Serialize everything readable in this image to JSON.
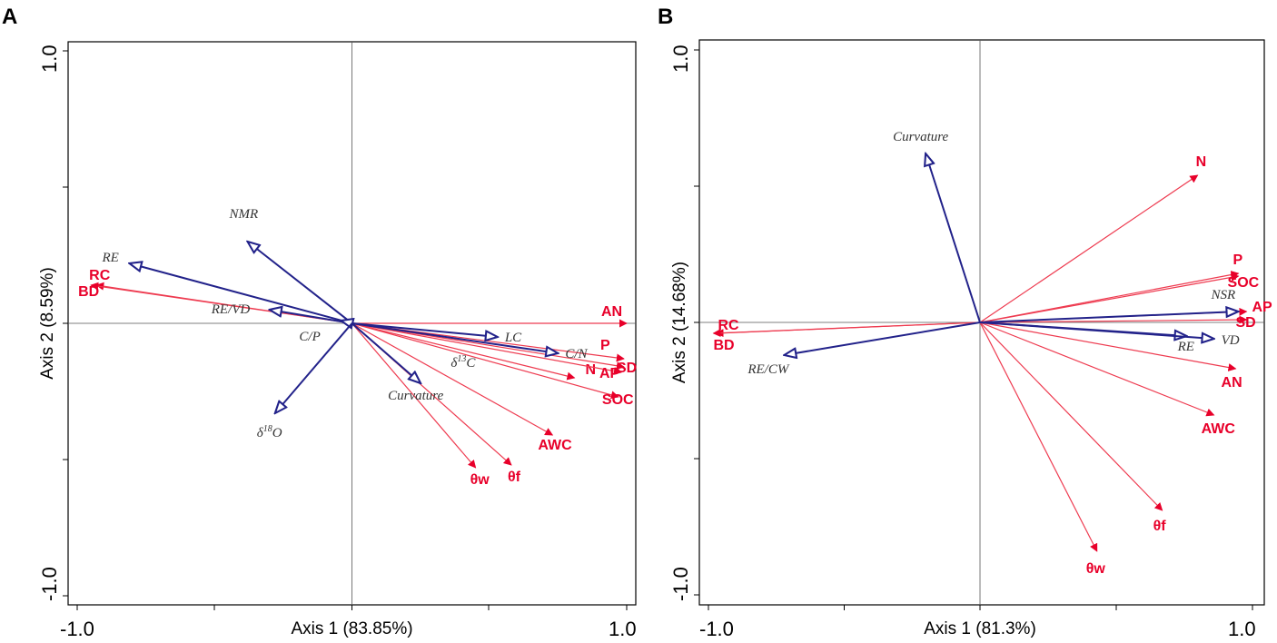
{
  "colors": {
    "soil": "#ee3b50",
    "soil_label": "#e8002a",
    "plant": "#22228a",
    "plant_label": "#333333"
  },
  "chart_data": [
    {
      "type": "biplot",
      "panel": "A",
      "xlabel": "Axis 1 (83.85%)",
      "ylabel": "Axis 2 (8.59%)",
      "xlim": [
        -1.0,
        1.0
      ],
      "ylim": [
        -1.0,
        1.0
      ],
      "tick_labels": {
        "x_min": "-1.0",
        "x_max": "1.0",
        "y_min": "-1.0",
        "y_max": "1.0"
      },
      "soil_vectors": [
        {
          "name": "AN",
          "x": 1.0,
          "y": 0.0
        },
        {
          "name": "P",
          "x": 0.99,
          "y": -0.13
        },
        {
          "name": "SD",
          "x": 0.99,
          "y": -0.16
        },
        {
          "name": "N",
          "x": 0.81,
          "y": -0.2
        },
        {
          "name": "AP",
          "x": 0.98,
          "y": -0.18
        },
        {
          "name": "SOC",
          "x": 0.97,
          "y": -0.27
        },
        {
          "name": "AWC",
          "x": 0.73,
          "y": -0.41
        },
        {
          "name": "θf",
          "x": 0.58,
          "y": -0.52
        },
        {
          "name": "θw",
          "x": 0.45,
          "y": -0.53
        },
        {
          "name": "RC",
          "x": -0.93,
          "y": 0.14
        },
        {
          "name": "BD",
          "x": -0.95,
          "y": 0.14
        }
      ],
      "plant_vectors": [
        {
          "name": "RE",
          "x": -0.81,
          "y": 0.22
        },
        {
          "name": "NMR",
          "x": -0.38,
          "y": 0.3
        },
        {
          "name": "RE/VD",
          "x": -0.3,
          "y": 0.05
        },
        {
          "name": "C/P",
          "x": -0.04,
          "y": 0.01
        },
        {
          "name": "LC",
          "x": 0.53,
          "y": -0.05
        },
        {
          "name": "C/N",
          "x": 0.75,
          "y": -0.11
        },
        {
          "name": "Curvature",
          "x": 0.25,
          "y": -0.22
        },
        {
          "name": "δ18O",
          "x": -0.28,
          "y": -0.33
        }
      ],
      "text_only": [
        {
          "name": "δ13C",
          "x": 0.36,
          "y": -0.16
        }
      ]
    },
    {
      "type": "biplot",
      "panel": "B",
      "xlabel": "Axis 1 (81.3%)",
      "ylabel": "Axis 2 (14.68%)",
      "xlim": [
        -1.0,
        1.0
      ],
      "ylim": [
        -1.0,
        1.0
      ],
      "tick_labels": {
        "x_min": "-1.0",
        "x_max": "1.0",
        "y_min": "-1.0",
        "y_max": "1.0"
      },
      "soil_vectors": [
        {
          "name": "N",
          "x": 0.8,
          "y": 0.54
        },
        {
          "name": "P",
          "x": 0.95,
          "y": 0.18
        },
        {
          "name": "SOC",
          "x": 0.95,
          "y": 0.17
        },
        {
          "name": "AP",
          "x": 0.98,
          "y": 0.04
        },
        {
          "name": "SD",
          "x": 0.98,
          "y": 0.01
        },
        {
          "name": "AN",
          "x": 0.94,
          "y": -0.17
        },
        {
          "name": "AWC",
          "x": 0.86,
          "y": -0.34
        },
        {
          "name": "θf",
          "x": 0.67,
          "y": -0.69
        },
        {
          "name": "θw",
          "x": 0.43,
          "y": -0.84
        },
        {
          "name": "RC",
          "x": -0.97,
          "y": -0.04
        },
        {
          "name": "BD",
          "x": -0.98,
          "y": -0.04
        }
      ],
      "plant_vectors": [
        {
          "name": "Curvature",
          "x": -0.2,
          "y": 0.62
        },
        {
          "name": "NSR",
          "x": 0.95,
          "y": 0.04
        },
        {
          "name": "RE",
          "x": 0.76,
          "y": -0.05
        },
        {
          "name": "VD",
          "x": 0.86,
          "y": -0.06
        },
        {
          "name": "RE/CW",
          "x": -0.72,
          "y": -0.12
        }
      ]
    }
  ]
}
